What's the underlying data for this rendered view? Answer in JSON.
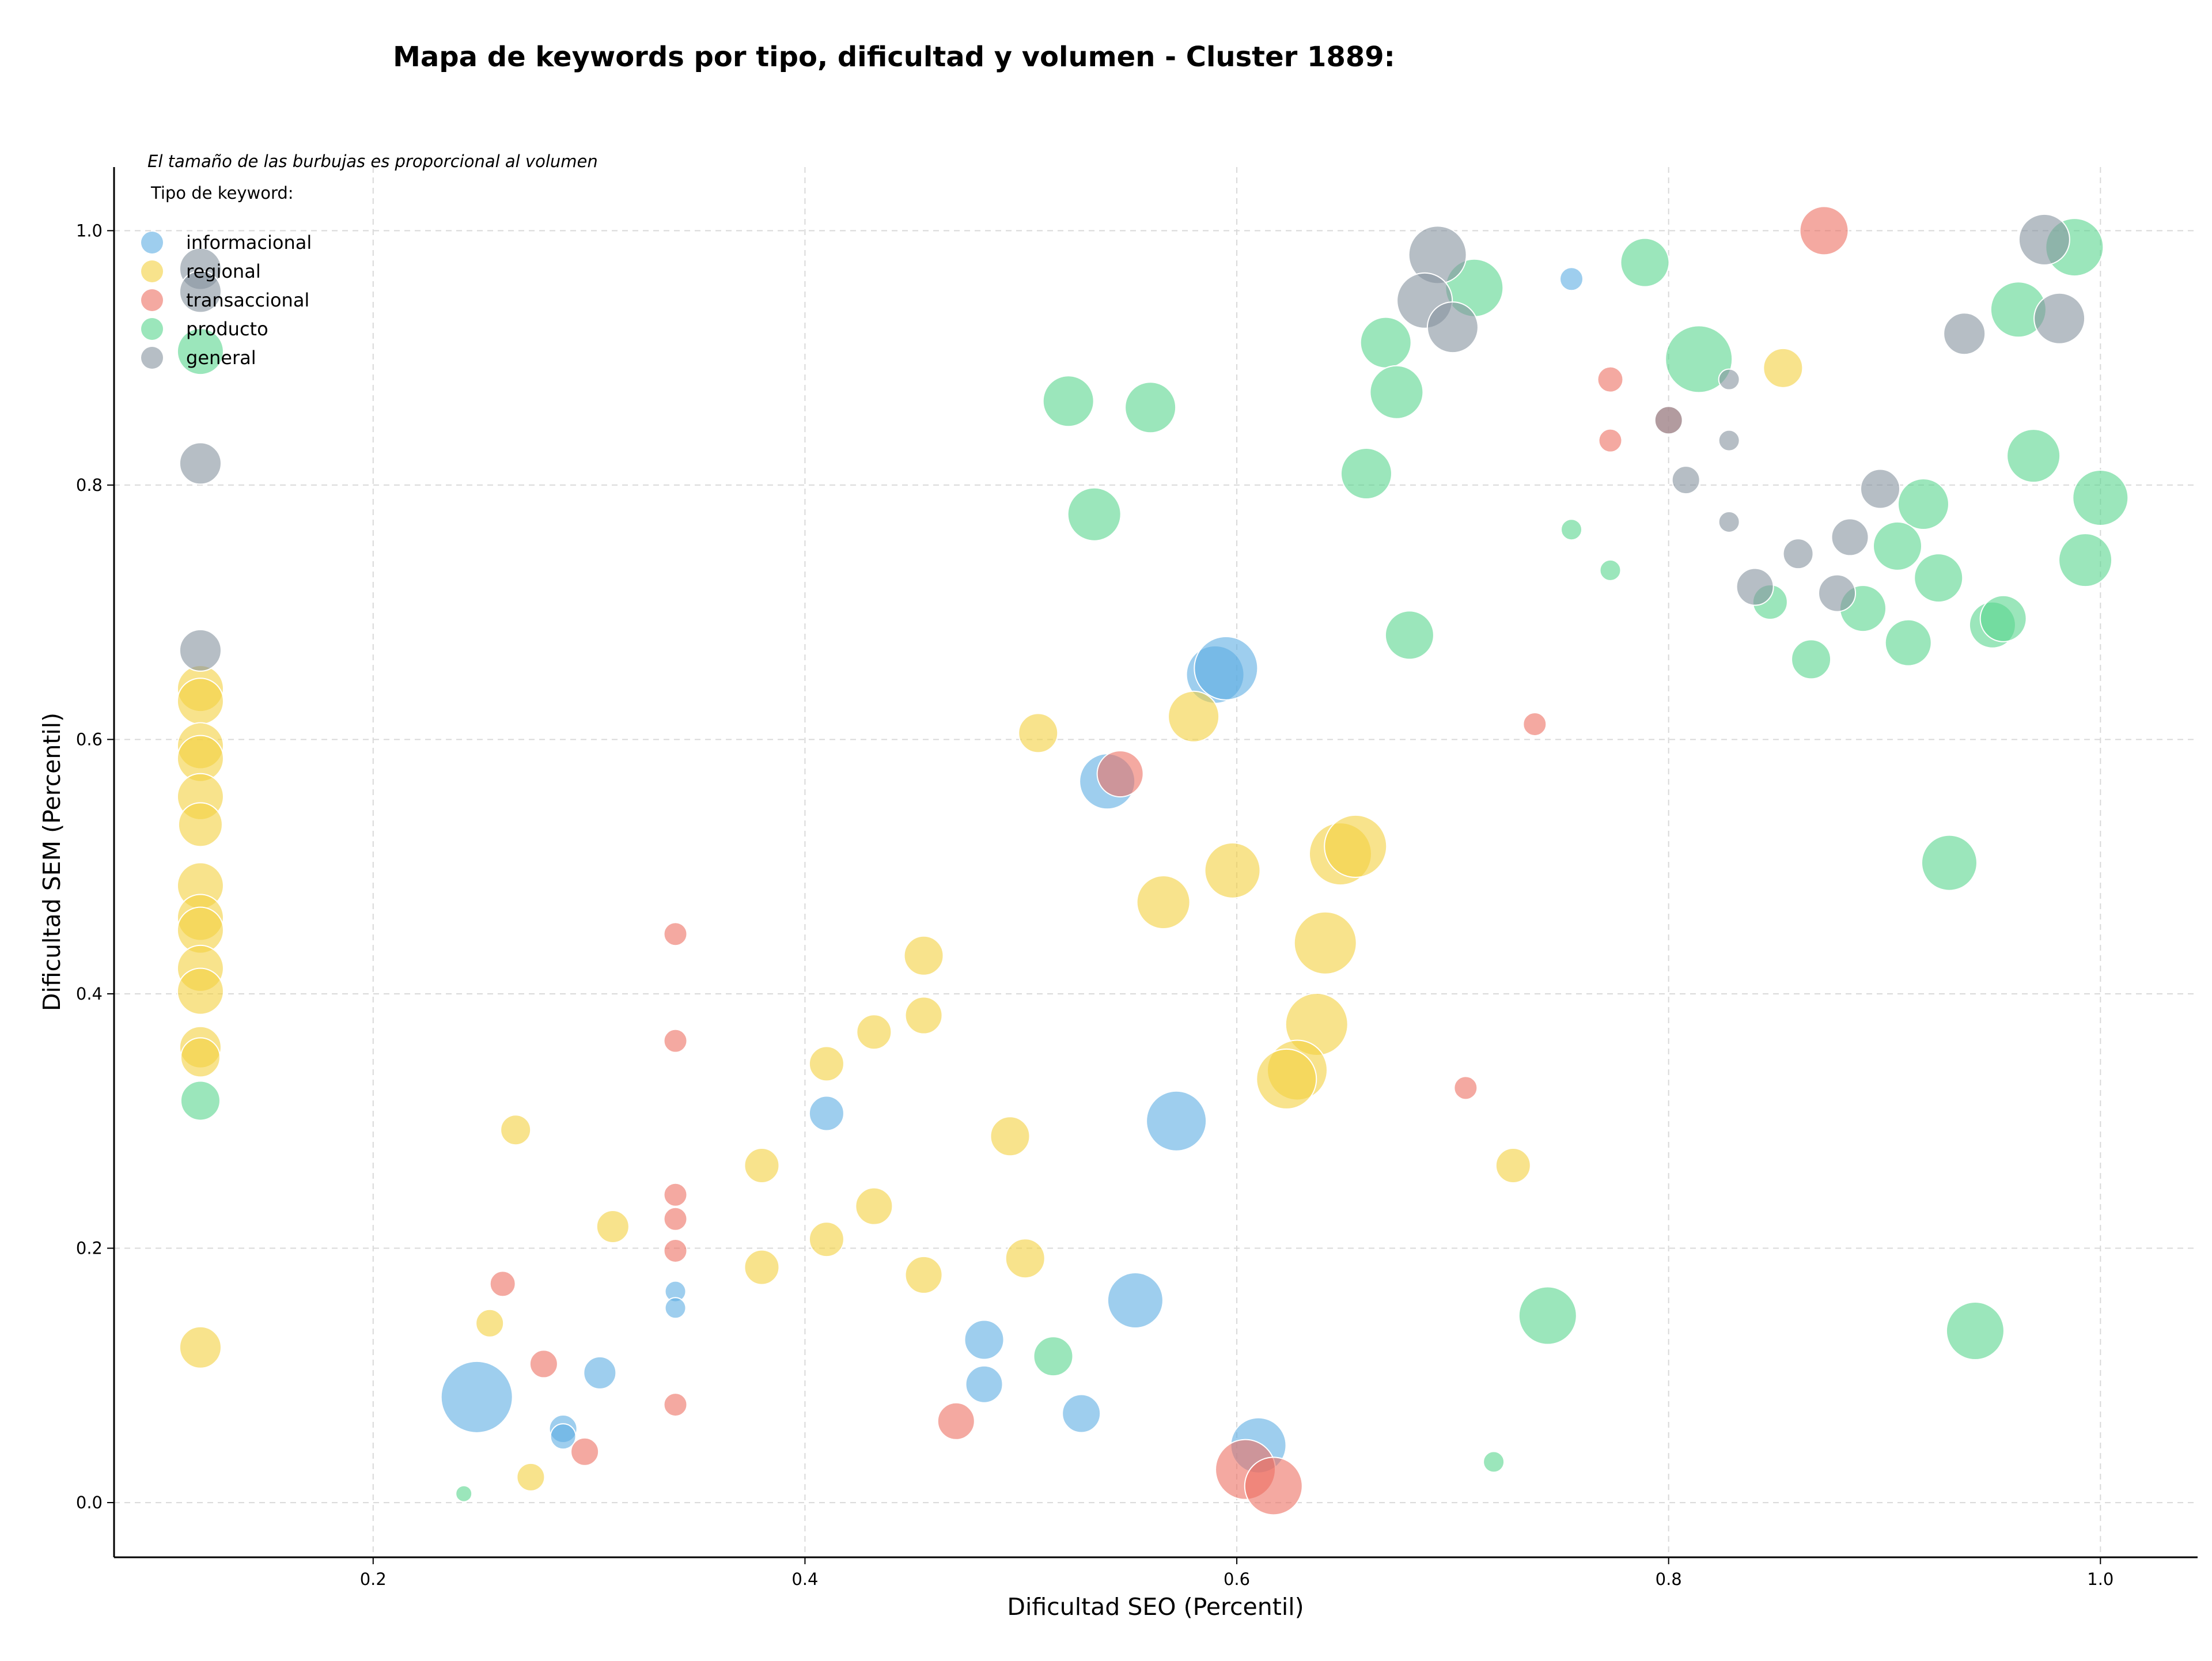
{
  "chart_data": {
    "type": "scatter",
    "title": "Mapa de keywords por tipo, dificultad y volumen - Cluster 1889:",
    "xlabel": "Dificultad SEO (Percentil)",
    "ylabel": "Dificultad SEM (Percentil)",
    "xlim": [
      0.08,
      1.045
    ],
    "ylim": [
      -0.043,
      1.05
    ],
    "xticks": [
      0.2,
      0.4,
      0.6,
      0.8,
      1.0
    ],
    "yticks": [
      0.0,
      0.2,
      0.4,
      0.6,
      0.8,
      1.0
    ],
    "xtick_labels": [
      "0.2",
      "0.4",
      "0.6",
      "0.8",
      "1.0"
    ],
    "ytick_labels": [
      "0.0",
      "0.2",
      "0.4",
      "0.6",
      "0.8",
      "1.0"
    ],
    "grid": true,
    "legend_title": "Tipo de keyword:",
    "legend_position": "top-left",
    "size_note": "El tamaño de las burbujas es proporcional al volumen",
    "series": [
      {
        "name": "informacional",
        "color": "#5DADE2",
        "points": [
          [
            0.755,
            0.962,
            20
          ],
          [
            0.59,
            0.651,
            50
          ],
          [
            0.595,
            0.656,
            55
          ],
          [
            0.54,
            0.567,
            48
          ],
          [
            0.41,
            0.306,
            30
          ],
          [
            0.572,
            0.3,
            52
          ],
          [
            0.34,
            0.166,
            18
          ],
          [
            0.34,
            0.153,
            18
          ],
          [
            0.553,
            0.159,
            48
          ],
          [
            0.483,
            0.128,
            34
          ],
          [
            0.483,
            0.093,
            32
          ],
          [
            0.305,
            0.102,
            28
          ],
          [
            0.248,
            0.083,
            62
          ],
          [
            0.288,
            0.058,
            24
          ],
          [
            0.288,
            0.052,
            22
          ],
          [
            0.528,
            0.07,
            33
          ],
          [
            0.61,
            0.045,
            48
          ]
        ]
      },
      {
        "name": "regional",
        "color": "#F4D03F",
        "points": [
          [
            0.12,
            0.64,
            40
          ],
          [
            0.12,
            0.63,
            40
          ],
          [
            0.12,
            0.595,
            40
          ],
          [
            0.12,
            0.585,
            40
          ],
          [
            0.12,
            0.555,
            40
          ],
          [
            0.12,
            0.533,
            38
          ],
          [
            0.12,
            0.485,
            40
          ],
          [
            0.12,
            0.46,
            40
          ],
          [
            0.12,
            0.45,
            40
          ],
          [
            0.12,
            0.42,
            40
          ],
          [
            0.12,
            0.402,
            40
          ],
          [
            0.12,
            0.358,
            36
          ],
          [
            0.12,
            0.35,
            34
          ],
          [
            0.12,
            0.122,
            36
          ],
          [
            0.853,
            0.892,
            34
          ],
          [
            0.508,
            0.605,
            34
          ],
          [
            0.58,
            0.618,
            44
          ],
          [
            0.598,
            0.497,
            48
          ],
          [
            0.566,
            0.472,
            46
          ],
          [
            0.648,
            0.51,
            54
          ],
          [
            0.655,
            0.516,
            54
          ],
          [
            0.641,
            0.44,
            54
          ],
          [
            0.637,
            0.376,
            54
          ],
          [
            0.628,
            0.34,
            52
          ],
          [
            0.623,
            0.333,
            52
          ],
          [
            0.455,
            0.43,
            34
          ],
          [
            0.455,
            0.383,
            32
          ],
          [
            0.432,
            0.37,
            30
          ],
          [
            0.41,
            0.345,
            30
          ],
          [
            0.266,
            0.293,
            26
          ],
          [
            0.38,
            0.265,
            30
          ],
          [
            0.432,
            0.233,
            32
          ],
          [
            0.311,
            0.217,
            28
          ],
          [
            0.41,
            0.207,
            30
          ],
          [
            0.38,
            0.185,
            30
          ],
          [
            0.455,
            0.179,
            32
          ],
          [
            0.495,
            0.288,
            34
          ],
          [
            0.502,
            0.192,
            34
          ],
          [
            0.254,
            0.141,
            24
          ],
          [
            0.273,
            0.02,
            24
          ],
          [
            0.728,
            0.265,
            30
          ]
        ]
      },
      {
        "name": "transaccional",
        "color": "#EC7063",
        "points": [
          [
            0.872,
            1.0,
            42
          ],
          [
            0.773,
            0.883,
            22
          ],
          [
            0.773,
            0.835,
            20
          ],
          [
            0.8,
            0.851,
            24
          ],
          [
            0.738,
            0.612,
            20
          ],
          [
            0.546,
            0.573,
            40
          ],
          [
            0.34,
            0.447,
            20
          ],
          [
            0.34,
            0.363,
            20
          ],
          [
            0.706,
            0.326,
            20
          ],
          [
            0.34,
            0.242,
            20
          ],
          [
            0.34,
            0.223,
            20
          ],
          [
            0.34,
            0.198,
            20
          ],
          [
            0.26,
            0.172,
            22
          ],
          [
            0.279,
            0.109,
            24
          ],
          [
            0.34,
            0.077,
            20
          ],
          [
            0.298,
            0.04,
            24
          ],
          [
            0.47,
            0.064,
            32
          ],
          [
            0.604,
            0.026,
            52
          ],
          [
            0.617,
            0.013,
            50
          ]
        ]
      },
      {
        "name": "producto",
        "color": "#58D68D",
        "points": [
          [
            0.12,
            0.905,
            40
          ],
          [
            0.12,
            0.316,
            34
          ],
          [
            0.789,
            0.975,
            42
          ],
          [
            0.71,
            0.955,
            50
          ],
          [
            0.988,
            0.987,
            50
          ],
          [
            0.962,
            0.938,
            48
          ],
          [
            0.669,
            0.912,
            44
          ],
          [
            0.814,
            0.899,
            58
          ],
          [
            0.674,
            0.873,
            46
          ],
          [
            0.522,
            0.866,
            44
          ],
          [
            0.56,
            0.861,
            44
          ],
          [
            0.66,
            0.809,
            44
          ],
          [
            0.534,
            0.777,
            46
          ],
          [
            0.969,
            0.823,
            46
          ],
          [
            1.0,
            0.79,
            48
          ],
          [
            0.918,
            0.785,
            44
          ],
          [
            0.906,
            0.752,
            42
          ],
          [
            0.925,
            0.727,
            42
          ],
          [
            0.993,
            0.741,
            46
          ],
          [
            0.755,
            0.765,
            18
          ],
          [
            0.773,
            0.733,
            18
          ],
          [
            0.847,
            0.708,
            30
          ],
          [
            0.89,
            0.703,
            40
          ],
          [
            0.911,
            0.676,
            40
          ],
          [
            0.95,
            0.69,
            40
          ],
          [
            0.955,
            0.695,
            40
          ],
          [
            0.866,
            0.663,
            34
          ],
          [
            0.68,
            0.682,
            42
          ],
          [
            0.93,
            0.503,
            48
          ],
          [
            0.744,
            0.147,
            50
          ],
          [
            0.942,
            0.135,
            50
          ],
          [
            0.515,
            0.115,
            34
          ],
          [
            0.719,
            0.032,
            18
          ],
          [
            0.242,
            0.007,
            14
          ]
        ]
      },
      {
        "name": "general",
        "color": "#85929E",
        "points": [
          [
            0.12,
            0.97,
            36
          ],
          [
            0.12,
            0.952,
            36
          ],
          [
            0.12,
            0.817,
            36
          ],
          [
            0.12,
            0.67,
            36
          ],
          [
            0.693,
            0.981,
            50
          ],
          [
            0.687,
            0.945,
            48
          ],
          [
            0.7,
            0.924,
            44
          ],
          [
            0.974,
            0.993,
            44
          ],
          [
            0.981,
            0.931,
            44
          ],
          [
            0.937,
            0.919,
            36
          ],
          [
            0.828,
            0.883,
            18
          ],
          [
            0.8,
            0.851,
            24
          ],
          [
            0.828,
            0.835,
            18
          ],
          [
            0.808,
            0.804,
            24
          ],
          [
            0.828,
            0.771,
            18
          ],
          [
            0.898,
            0.797,
            34
          ],
          [
            0.86,
            0.746,
            26
          ],
          [
            0.884,
            0.759,
            32
          ],
          [
            0.84,
            0.72,
            32
          ],
          [
            0.878,
            0.715,
            32
          ]
        ]
      }
    ]
  }
}
